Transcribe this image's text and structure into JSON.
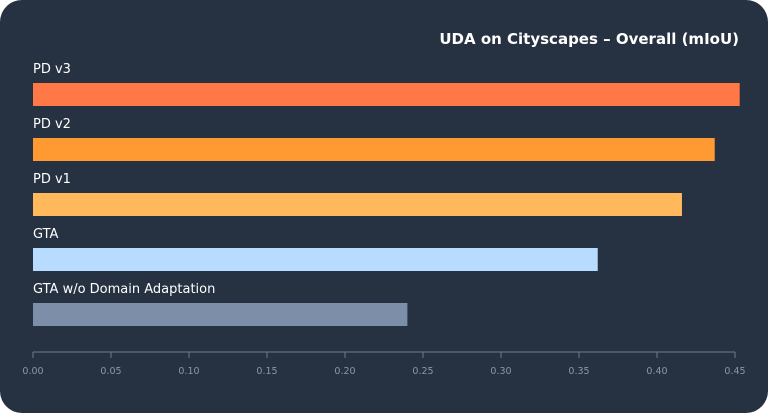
{
  "chart_data": {
    "type": "bar",
    "orientation": "horizontal",
    "title": "UDA on Cityscapes – Overall (mIoU)",
    "xlabel": "",
    "ylabel": "",
    "xlim": [
      0,
      0.45
    ],
    "grid": false,
    "legend": "none",
    "categories": [
      "PD v3",
      "PD v2",
      "PD v1",
      "GTA",
      "GTA w/o Domain Adaptation"
    ],
    "values": [
      0.453,
      0.437,
      0.416,
      0.362,
      0.24
    ],
    "colors": [
      "#ff7846",
      "#ff9a32",
      "#ffb85c",
      "#b8dcff",
      "#7d8fa8"
    ],
    "x_ticks": [
      0.0,
      0.05,
      0.1,
      0.15,
      0.2,
      0.25,
      0.3,
      0.35,
      0.4,
      0.45
    ],
    "x_tick_labels": [
      "0.00",
      "0.05",
      "0.10",
      "0.15",
      "0.20",
      "0.25",
      "0.30",
      "0.35",
      "0.40",
      "0.45"
    ]
  },
  "colors": {
    "background": "#263141",
    "axis": "#6f7d90",
    "tick_text": "#8a97a8",
    "text": "#ffffff"
  }
}
